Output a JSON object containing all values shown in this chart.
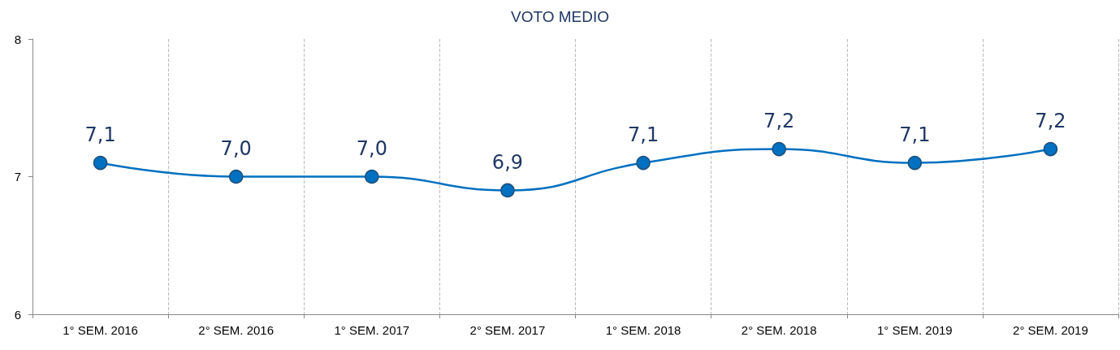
{
  "chart_data": {
    "type": "line",
    "title": "VOTO MEDIO",
    "categories": [
      "1° SEM. 2016",
      "2° SEM. 2016",
      "1° SEM. 2017",
      "2° SEM. 2017",
      "1° SEM. 2018",
      "2° SEM. 2018",
      "1° SEM. 2019",
      "2° SEM. 2019"
    ],
    "series": [
      {
        "color": "#0070c0",
        "values": [
          7.1,
          7.0,
          7.0,
          6.9,
          7.1,
          7.2,
          7.1,
          7.2
        ],
        "value_labels": [
          "7,1",
          "7,0",
          "7,0",
          "6,9",
          "7,1",
          "7,2",
          "7,1",
          "7,2"
        ]
      }
    ],
    "ylim": [
      6,
      8
    ],
    "yticks": [
      6,
      7,
      8
    ],
    "grid": "x",
    "marker": "circle",
    "line_style": "solid"
  }
}
